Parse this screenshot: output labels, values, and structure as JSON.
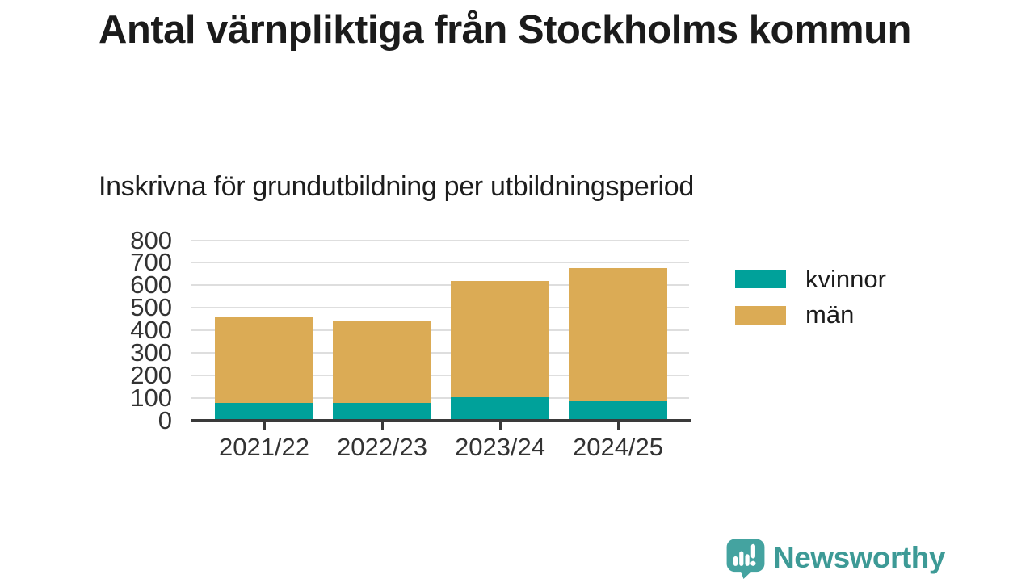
{
  "header": {
    "title": "Antal värnpliktiga från Stockholms kommun",
    "subtitle": "Inskrivna för grundutbildning per utbildningsperiod"
  },
  "chart_data": {
    "type": "bar",
    "stacked": true,
    "title": "Antal värnpliktiga från Stockholms kommun",
    "subtitle": "Inskrivna för grundutbildning per utbildningsperiod",
    "categories": [
      "2021/22",
      "2022/23",
      "2023/24",
      "2024/25"
    ],
    "series": [
      {
        "name": "kvinnor",
        "color": "#00A19A",
        "values": [
          80,
          80,
          105,
          90
        ]
      },
      {
        "name": "män",
        "color": "#DBAB55",
        "values": [
          380,
          365,
          515,
          585
        ]
      }
    ],
    "stacked_totals": [
      460,
      445,
      620,
      675
    ],
    "xlabel": "",
    "ylabel": "",
    "ylim": [
      0,
      800
    ],
    "yticks": [
      0,
      100,
      200,
      300,
      400,
      500,
      600,
      700,
      800
    ],
    "grid": true,
    "grid_color": "#dedede",
    "axis_color": "#3a3a3a",
    "legend_position": "right"
  },
  "legend": {
    "items": [
      {
        "label": "kvinnor",
        "color": "#00A19A"
      },
      {
        "label": "män",
        "color": "#DBAB55"
      }
    ]
  },
  "footer": {
    "brand": "Newsworthy",
    "brand_color": "#3d9a96",
    "icon": "bar-chart-speech-bubble-icon"
  }
}
